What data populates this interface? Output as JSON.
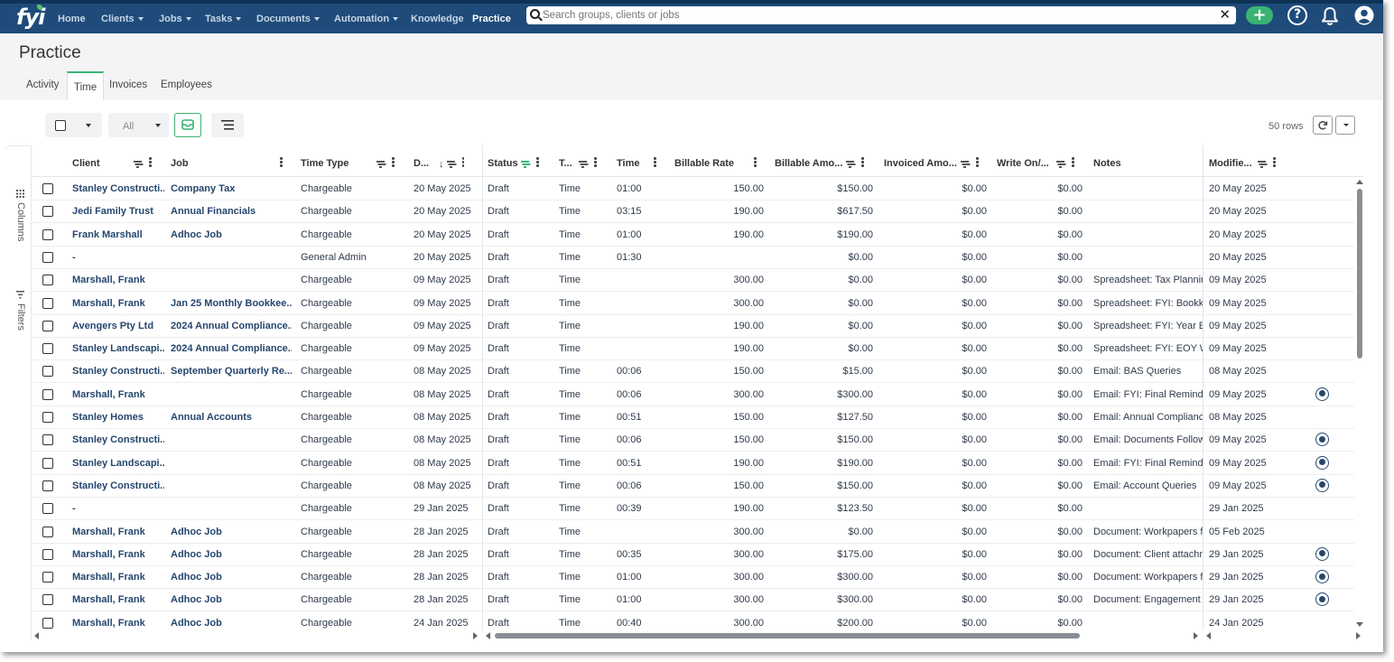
{
  "app": {
    "logo_text": "fyi",
    "nav": [
      {
        "label": "Home",
        "dropdown": false
      },
      {
        "label": "Clients",
        "dropdown": true
      },
      {
        "label": "Jobs",
        "dropdown": true
      },
      {
        "label": "Tasks",
        "dropdown": true
      },
      {
        "label": "Documents",
        "dropdown": true
      },
      {
        "label": "Automation",
        "dropdown": true
      },
      {
        "label": "Knowledge",
        "dropdown": false
      },
      {
        "label": "Practice",
        "dropdown": false,
        "active": true
      }
    ],
    "search": {
      "placeholder": "Search groups, clients or jobs",
      "value": ""
    },
    "colors": {
      "nav_bg": "#1e4b7a",
      "accent_green": "#3bb273",
      "link": "#25466e"
    }
  },
  "page": {
    "title": "Practice",
    "tabs": [
      {
        "label": "Activity",
        "active": false
      },
      {
        "label": "Time",
        "active": true
      },
      {
        "label": "Invoices",
        "active": false
      },
      {
        "label": "Employees",
        "active": false
      }
    ]
  },
  "toolbar": {
    "status_filter": "All",
    "row_count": "50 rows"
  },
  "sidebar": {
    "columns_label": "Columns",
    "filters_label": "Filters"
  },
  "grid": {
    "columns": [
      "Client",
      "Job",
      "Time Type",
      "D...",
      "Status",
      "T...",
      "Time",
      "Billable Rate",
      "Billable Amo...",
      "Invoiced Amo...",
      "Write On/...",
      "Notes",
      "Modifie..."
    ],
    "rows": [
      {
        "client": "Stanley Constructi...",
        "job": "Company Tax",
        "time_type": "Chargeable",
        "date": "20 May 2025",
        "status": "Draft",
        "type": "Time",
        "time": "01:00",
        "rate": "150.00",
        "billable": "$150.00",
        "invoiced": "$0.00",
        "write": "$0.00",
        "notes": "",
        "modified": "20 May 2025",
        "lock": false
      },
      {
        "client": "Jedi Family Trust",
        "job": "Annual Financials",
        "time_type": "Chargeable",
        "date": "20 May 2025",
        "status": "Draft",
        "type": "Time",
        "time": "03:15",
        "rate": "190.00",
        "billable": "$617.50",
        "invoiced": "$0.00",
        "write": "$0.00",
        "notes": "",
        "modified": "20 May 2025",
        "lock": false
      },
      {
        "client": "Frank Marshall",
        "job": "Adhoc Job",
        "time_type": "Chargeable",
        "date": "20 May 2025",
        "status": "Draft",
        "type": "Time",
        "time": "01:00",
        "rate": "190.00",
        "billable": "$190.00",
        "invoiced": "$0.00",
        "write": "$0.00",
        "notes": "",
        "modified": "20 May 2025",
        "lock": false
      },
      {
        "client": "-",
        "job": "",
        "time_type": "General Admin",
        "date": "20 May 2025",
        "status": "Draft",
        "type": "Time",
        "time": "01:30",
        "rate": "",
        "billable": "$0.00",
        "invoiced": "$0.00",
        "write": "$0.00",
        "notes": "",
        "modified": "20 May 2025",
        "lock": false
      },
      {
        "client": "Marshall, Frank",
        "job": "",
        "time_type": "Chargeable",
        "date": "09 May 2025",
        "status": "Draft",
        "type": "Time",
        "time": "",
        "rate": "300.00",
        "billable": "$0.00",
        "invoiced": "$0.00",
        "write": "$0.00",
        "notes": "Spreadsheet: Tax Planning",
        "modified": "09 May 2025",
        "lock": false
      },
      {
        "client": "Marshall, Frank",
        "job": "Jan 25 Monthly Bookkee...",
        "time_type": "Chargeable",
        "date": "09 May 2025",
        "status": "Draft",
        "type": "Time",
        "time": "",
        "rate": "300.00",
        "billable": "$0.00",
        "invoiced": "$0.00",
        "write": "$0.00",
        "notes": "Spreadsheet: FYI: Bookkee",
        "modified": "09 May 2025",
        "lock": false
      },
      {
        "client": "Avengers Pty Ltd",
        "job": "2024 Annual Compliance...",
        "time_type": "Chargeable",
        "date": "09 May 2025",
        "status": "Draft",
        "type": "Time",
        "time": "",
        "rate": "190.00",
        "billable": "$0.00",
        "invoiced": "$0.00",
        "write": "$0.00",
        "notes": "Spreadsheet: FYI: Year End",
        "modified": "09 May 2025",
        "lock": false
      },
      {
        "client": "Stanley Landscapi...",
        "job": "2024 Annual Compliance...",
        "time_type": "Chargeable",
        "date": "09 May 2025",
        "status": "Draft",
        "type": "Time",
        "time": "",
        "rate": "190.00",
        "billable": "$0.00",
        "invoiced": "$0.00",
        "write": "$0.00",
        "notes": "Spreadsheet: FYI: EOY Wo",
        "modified": "09 May 2025",
        "lock": false
      },
      {
        "client": "Stanley Constructi...",
        "job": "September Quarterly Re...",
        "time_type": "Chargeable",
        "date": "08 May 2025",
        "status": "Draft",
        "type": "Time",
        "time": "00:06",
        "rate": "150.00",
        "billable": "$15.00",
        "invoiced": "$0.00",
        "write": "$0.00",
        "notes": "Email: BAS Queries",
        "modified": "08 May 2025",
        "lock": false
      },
      {
        "client": "Marshall, Frank",
        "job": "",
        "time_type": "Chargeable",
        "date": "08 May 2025",
        "status": "Draft",
        "type": "Time",
        "time": "00:06",
        "rate": "300.00",
        "billable": "$300.00",
        "invoiced": "$0.00",
        "write": "$0.00",
        "notes": "Email: FYI: Final Reminder",
        "modified": "09 May 2025",
        "lock": true
      },
      {
        "client": "Stanley Homes",
        "job": "Annual Accounts",
        "time_type": "Chargeable",
        "date": "08 May 2025",
        "status": "Draft",
        "type": "Time",
        "time": "00:51",
        "rate": "150.00",
        "billable": "$127.50",
        "invoiced": "$0.00",
        "write": "$0.00",
        "notes": "Email: Annual Compliance",
        "modified": "08 May 2025",
        "lock": false
      },
      {
        "client": "Stanley Constructi...",
        "job": "",
        "time_type": "Chargeable",
        "date": "08 May 2025",
        "status": "Draft",
        "type": "Time",
        "time": "00:06",
        "rate": "150.00",
        "billable": "$150.00",
        "invoiced": "$0.00",
        "write": "$0.00",
        "notes": "Email: Documents Follow",
        "modified": "09 May 2025",
        "lock": true
      },
      {
        "client": "Stanley Landscapi...",
        "job": "",
        "time_type": "Chargeable",
        "date": "08 May 2025",
        "status": "Draft",
        "type": "Time",
        "time": "00:51",
        "rate": "190.00",
        "billable": "$190.00",
        "invoiced": "$0.00",
        "write": "$0.00",
        "notes": "Email: FYI: Final Reminder",
        "modified": "09 May 2025",
        "lock": true
      },
      {
        "client": "Stanley Constructi...",
        "job": "",
        "time_type": "Chargeable",
        "date": "08 May 2025",
        "status": "Draft",
        "type": "Time",
        "time": "00:06",
        "rate": "150.00",
        "billable": "$150.00",
        "invoiced": "$0.00",
        "write": "$0.00",
        "notes": "Email: Account Queries",
        "modified": "09 May 2025",
        "lock": true
      },
      {
        "client": "-",
        "job": "",
        "time_type": "Chargeable",
        "date": "29 Jan 2025",
        "status": "Draft",
        "type": "Time",
        "time": "00:39",
        "rate": "190.00",
        "billable": "$123.50",
        "invoiced": "$0.00",
        "write": "$0.00",
        "notes": "",
        "modified": "29 Jan 2025",
        "lock": false
      },
      {
        "client": "Marshall, Frank",
        "job": "Adhoc Job",
        "time_type": "Chargeable",
        "date": "28 Jan 2025",
        "status": "Draft",
        "type": "Time",
        "time": "",
        "rate": "300.00",
        "billable": "$0.00",
        "invoiced": "$0.00",
        "write": "$0.00",
        "notes": "Document: Workpapers fo",
        "modified": "05 Feb 2025",
        "lock": false
      },
      {
        "client": "Marshall, Frank",
        "job": "Adhoc Job",
        "time_type": "Chargeable",
        "date": "28 Jan 2025",
        "status": "Draft",
        "type": "Time",
        "time": "00:35",
        "rate": "300.00",
        "billable": "$175.00",
        "invoiced": "$0.00",
        "write": "$0.00",
        "notes": "Document: Client attachm",
        "modified": "29 Jan 2025",
        "lock": true
      },
      {
        "client": "Marshall, Frank",
        "job": "Adhoc Job",
        "time_type": "Chargeable",
        "date": "28 Jan 2025",
        "status": "Draft",
        "type": "Time",
        "time": "01:00",
        "rate": "300.00",
        "billable": "$300.00",
        "invoiced": "$0.00",
        "write": "$0.00",
        "notes": "Document: Workpapers fo",
        "modified": "29 Jan 2025",
        "lock": true
      },
      {
        "client": "Marshall, Frank",
        "job": "Adhoc Job",
        "time_type": "Chargeable",
        "date": "28 Jan 2025",
        "status": "Draft",
        "type": "Time",
        "time": "01:00",
        "rate": "300.00",
        "billable": "$300.00",
        "invoiced": "$0.00",
        "write": "$0.00",
        "notes": "Document: Engagement L",
        "modified": "29 Jan 2025",
        "lock": true
      },
      {
        "client": "Marshall, Frank",
        "job": "Adhoc Job",
        "time_type": "Chargeable",
        "date": "24 Jan 2025",
        "status": "Draft",
        "type": "Time",
        "time": "00:40",
        "rate": "300.00",
        "billable": "$200.00",
        "invoiced": "$0.00",
        "write": "$0.00",
        "notes": "",
        "modified": "24 Jan 2025",
        "lock": false
      }
    ]
  }
}
